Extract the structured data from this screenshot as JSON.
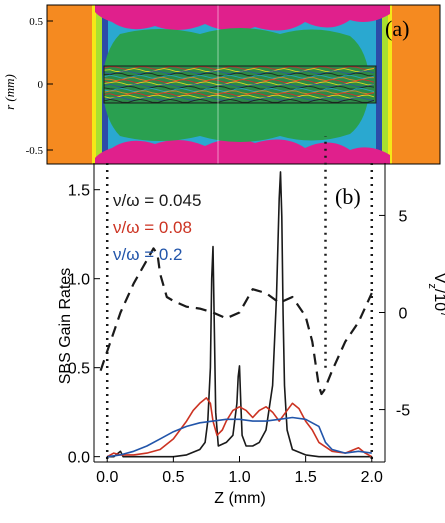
{
  "panel_a": {
    "label": "(a)",
    "ylabel": "r (mm)",
    "yticks": [
      "0.5",
      "0",
      "-0.5"
    ]
  },
  "panel_b": {
    "label": "(b)"
  },
  "legend": [
    {
      "text": "ν/ω = 0.045",
      "color": "#1a1a1a"
    },
    {
      "text": "ν/ω = 0.08",
      "color": "#cc3322"
    },
    {
      "text": "ν/ω = 0.2",
      "color": "#2255aa"
    }
  ],
  "chart_data": [
    {
      "type": "heatmap",
      "title": "",
      "ylabel": "r (mm)",
      "ylim": [
        -0.6,
        0.6
      ],
      "yticks": [
        0.5,
        0,
        -0.5
      ],
      "colors": [
        "#e8202a",
        "#f58a20",
        "#f4e818",
        "#a8e030",
        "#2aa050",
        "#2aa8d0",
        "#2c4ca8",
        "#e0208c"
      ]
    },
    {
      "type": "line",
      "title": "",
      "xlabel": "Z (mm)",
      "ylabel": "SBS Gain Rates",
      "y2label": "V_z/10^7",
      "xlim": [
        -0.1,
        2.1
      ],
      "ylim": [
        -0.03,
        1.65
      ],
      "y2lim": [
        -7.7,
        7.7
      ],
      "xticks": [
        "0.0",
        "0.5",
        "1.0",
        "1.5",
        "2.0"
      ],
      "yticks": [
        "0.0",
        "0.5",
        "1.0",
        "1.5"
      ],
      "y2ticks": [
        "5",
        "0",
        "-5"
      ],
      "series": [
        {
          "name": "ν/ω = 0.045",
          "color": "#1a1a1a",
          "axis": "left",
          "x": [
            0.0,
            0.05,
            0.1,
            0.12,
            0.2,
            0.3,
            0.4,
            0.5,
            0.6,
            0.7,
            0.74,
            0.76,
            0.78,
            0.79,
            0.8,
            0.81,
            0.82,
            0.84,
            0.9,
            0.95,
            0.98,
            0.99,
            1.0,
            1.01,
            1.02,
            1.05,
            1.1,
            1.15,
            1.2,
            1.25,
            1.28,
            1.3,
            1.31,
            1.32,
            1.33,
            1.34,
            1.36,
            1.4,
            1.5,
            1.6,
            1.7,
            1.8,
            1.85,
            1.9,
            1.95,
            2.0
          ],
          "y": [
            0.0,
            0.0,
            0.03,
            0.0,
            0.0,
            0.0,
            0.0,
            0.0,
            0.01,
            0.04,
            0.08,
            0.2,
            0.5,
            1.0,
            1.18,
            0.7,
            0.25,
            0.06,
            0.08,
            0.12,
            0.3,
            0.45,
            0.51,
            0.3,
            0.12,
            0.06,
            0.06,
            0.08,
            0.15,
            0.4,
            0.9,
            1.45,
            1.6,
            1.35,
            0.8,
            0.4,
            0.15,
            0.04,
            0.01,
            0.0,
            0.0,
            0.0,
            0.0,
            0.0,
            0.0,
            0.0
          ]
        },
        {
          "name": "ν/ω = 0.08",
          "color": "#cc3322",
          "axis": "left",
          "x": [
            0.0,
            0.05,
            0.1,
            0.2,
            0.3,
            0.4,
            0.5,
            0.6,
            0.65,
            0.7,
            0.75,
            0.78,
            0.8,
            0.83,
            0.87,
            0.9,
            0.95,
            1.0,
            1.05,
            1.1,
            1.15,
            1.2,
            1.25,
            1.3,
            1.35,
            1.4,
            1.45,
            1.5,
            1.55,
            1.6,
            1.7,
            1.8,
            1.9,
            1.95,
            2.0
          ],
          "y": [
            0.0,
            0.02,
            0.01,
            0.01,
            0.02,
            0.04,
            0.1,
            0.2,
            0.26,
            0.3,
            0.33,
            0.3,
            0.2,
            0.12,
            0.15,
            0.2,
            0.26,
            0.28,
            0.26,
            0.22,
            0.26,
            0.28,
            0.25,
            0.2,
            0.25,
            0.3,
            0.27,
            0.2,
            0.15,
            0.08,
            0.03,
            0.02,
            0.05,
            0.02,
            0.0
          ]
        },
        {
          "name": "ν/ω = 0.2",
          "color": "#2255aa",
          "axis": "left",
          "x": [
            0.0,
            0.1,
            0.2,
            0.3,
            0.4,
            0.5,
            0.6,
            0.7,
            0.8,
            0.9,
            1.0,
            1.1,
            1.2,
            1.3,
            1.4,
            1.5,
            1.6,
            1.65,
            1.7,
            1.8,
            1.9,
            2.0
          ],
          "y": [
            0.0,
            0.01,
            0.03,
            0.06,
            0.1,
            0.14,
            0.17,
            0.19,
            0.2,
            0.21,
            0.21,
            0.2,
            0.2,
            0.21,
            0.22,
            0.21,
            0.17,
            0.08,
            0.04,
            0.02,
            0.03,
            0.02
          ]
        },
        {
          "name": "V_z",
          "color": "#1a1a1a",
          "dash": true,
          "axis": "right",
          "x": [
            -0.05,
            0.0,
            0.1,
            0.2,
            0.3,
            0.35,
            0.38,
            0.4,
            0.45,
            0.5,
            0.6,
            0.7,
            0.8,
            0.9,
            1.0,
            1.05,
            1.1,
            1.2,
            1.3,
            1.4,
            1.5,
            1.55,
            1.6,
            1.62,
            1.64,
            1.7,
            1.8,
            1.9,
            2.0
          ],
          "y": [
            -3.0,
            -2.0,
            0.0,
            1.5,
            2.7,
            3.3,
            3.0,
            2.0,
            0.8,
            0.6,
            0.3,
            0.2,
            0.0,
            -0.3,
            0.0,
            0.6,
            1.2,
            1.0,
            0.5,
            0.8,
            -0.2,
            -1.5,
            -3.8,
            -4.2,
            -4.0,
            -3.0,
            -1.5,
            -0.5,
            1.0
          ]
        },
        {
          "name": "",
          "color": "#1a1a1a",
          "dotted": true,
          "axis": "left",
          "x": [
            1.65,
            1.65
          ],
          "y": [
            0.5,
            1.8
          ]
        }
      ]
    }
  ]
}
